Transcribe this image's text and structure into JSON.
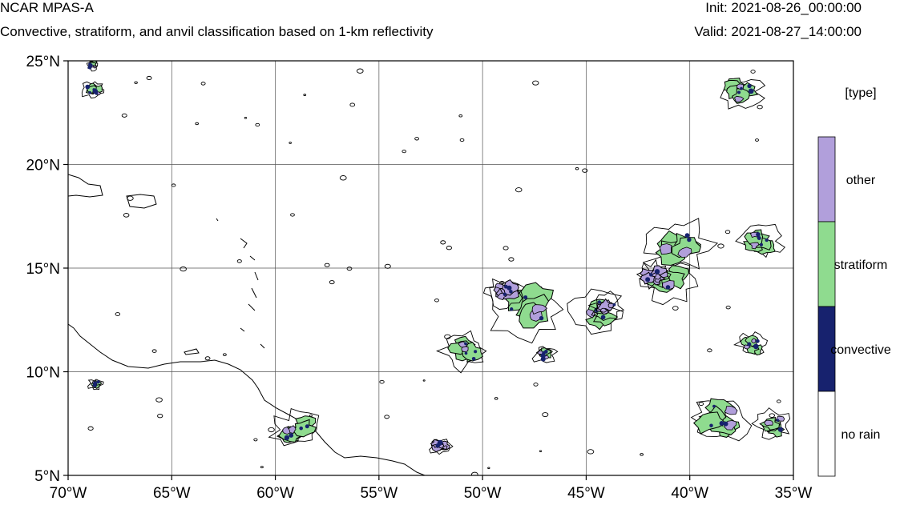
{
  "header": {
    "model": "NCAR MPAS-A",
    "description": "Convective, stratiform, and anvil classification based on 1-km reflectivity",
    "init": "Init: 2021-08-26_00:00:00",
    "valid": "Valid: 2021-08-27_14:00:00"
  },
  "map": {
    "lon_range": [
      -70,
      -35
    ],
    "lat_range": [
      5,
      25
    ],
    "lon_ticks": [
      {
        "value": -70,
        "label": "70°W"
      },
      {
        "value": -65,
        "label": "65°W"
      },
      {
        "value": -60,
        "label": "60°W"
      },
      {
        "value": -55,
        "label": "55°W"
      },
      {
        "value": -50,
        "label": "50°W"
      },
      {
        "value": -45,
        "label": "45°W"
      },
      {
        "value": -40,
        "label": "40°W"
      },
      {
        "value": -35,
        "label": "35°W"
      }
    ],
    "lat_ticks": [
      {
        "value": 25,
        "label": "25°N"
      },
      {
        "value": 20,
        "label": "20°N"
      },
      {
        "value": 15,
        "label": "15°N"
      },
      {
        "value": 10,
        "label": "10°N"
      },
      {
        "value": 5,
        "label": "5°N"
      }
    ],
    "gridlines": true,
    "colors": {
      "stratiform": "#8fdb8f",
      "other": "#b19fdb",
      "convective": "#17226e",
      "no_rain": "#ffffff"
    },
    "clusters": [
      {
        "lon": -68.8,
        "lat": 23.6,
        "r": 0.5,
        "mix": "stratiform"
      },
      {
        "lon": -68.8,
        "lat": 24.8,
        "r": 0.3,
        "mix": "stratiform"
      },
      {
        "lon": -48.0,
        "lat": 13.0,
        "r": 1.6,
        "mix": "stratiform"
      },
      {
        "lon": -49.0,
        "lat": 13.8,
        "r": 0.9,
        "mix": "other"
      },
      {
        "lon": -50.8,
        "lat": 11.0,
        "r": 1.0,
        "mix": "stratiform"
      },
      {
        "lon": -44.5,
        "lat": 12.9,
        "r": 1.1,
        "mix": "stratiform"
      },
      {
        "lon": -44.0,
        "lat": 13.2,
        "r": 0.7,
        "mix": "other"
      },
      {
        "lon": -41.0,
        "lat": 14.5,
        "r": 1.2,
        "mix": "stratiform"
      },
      {
        "lon": -41.8,
        "lat": 14.7,
        "r": 0.7,
        "mix": "other"
      },
      {
        "lon": -40.5,
        "lat": 16.2,
        "r": 1.4,
        "mix": "stratiform"
      },
      {
        "lon": -36.5,
        "lat": 16.3,
        "r": 0.9,
        "mix": "stratiform"
      },
      {
        "lon": -37.5,
        "lat": 23.5,
        "r": 0.9,
        "mix": "stratiform"
      },
      {
        "lon": -38.5,
        "lat": 7.8,
        "r": 1.3,
        "mix": "stratiform"
      },
      {
        "lon": -36.0,
        "lat": 7.5,
        "r": 0.8,
        "mix": "stratiform"
      },
      {
        "lon": -59.0,
        "lat": 7.2,
        "r": 1.0,
        "mix": "stratiform"
      },
      {
        "lon": -52.0,
        "lat": 6.4,
        "r": 0.5,
        "mix": "other"
      },
      {
        "lon": -47.0,
        "lat": 10.8,
        "r": 0.5,
        "mix": "stratiform"
      },
      {
        "lon": -37.0,
        "lat": 11.3,
        "r": 0.6,
        "mix": "stratiform"
      },
      {
        "lon": -68.7,
        "lat": 9.4,
        "r": 0.3,
        "mix": "stratiform"
      }
    ]
  },
  "colorbar": {
    "title": "[type]",
    "items": [
      {
        "label": "other",
        "color": "#b19fdb"
      },
      {
        "label": "stratiform",
        "color": "#8fdb8f"
      },
      {
        "label": "convective",
        "color": "#17226e"
      },
      {
        "label": "no rain",
        "color": "#ffffff"
      }
    ]
  }
}
